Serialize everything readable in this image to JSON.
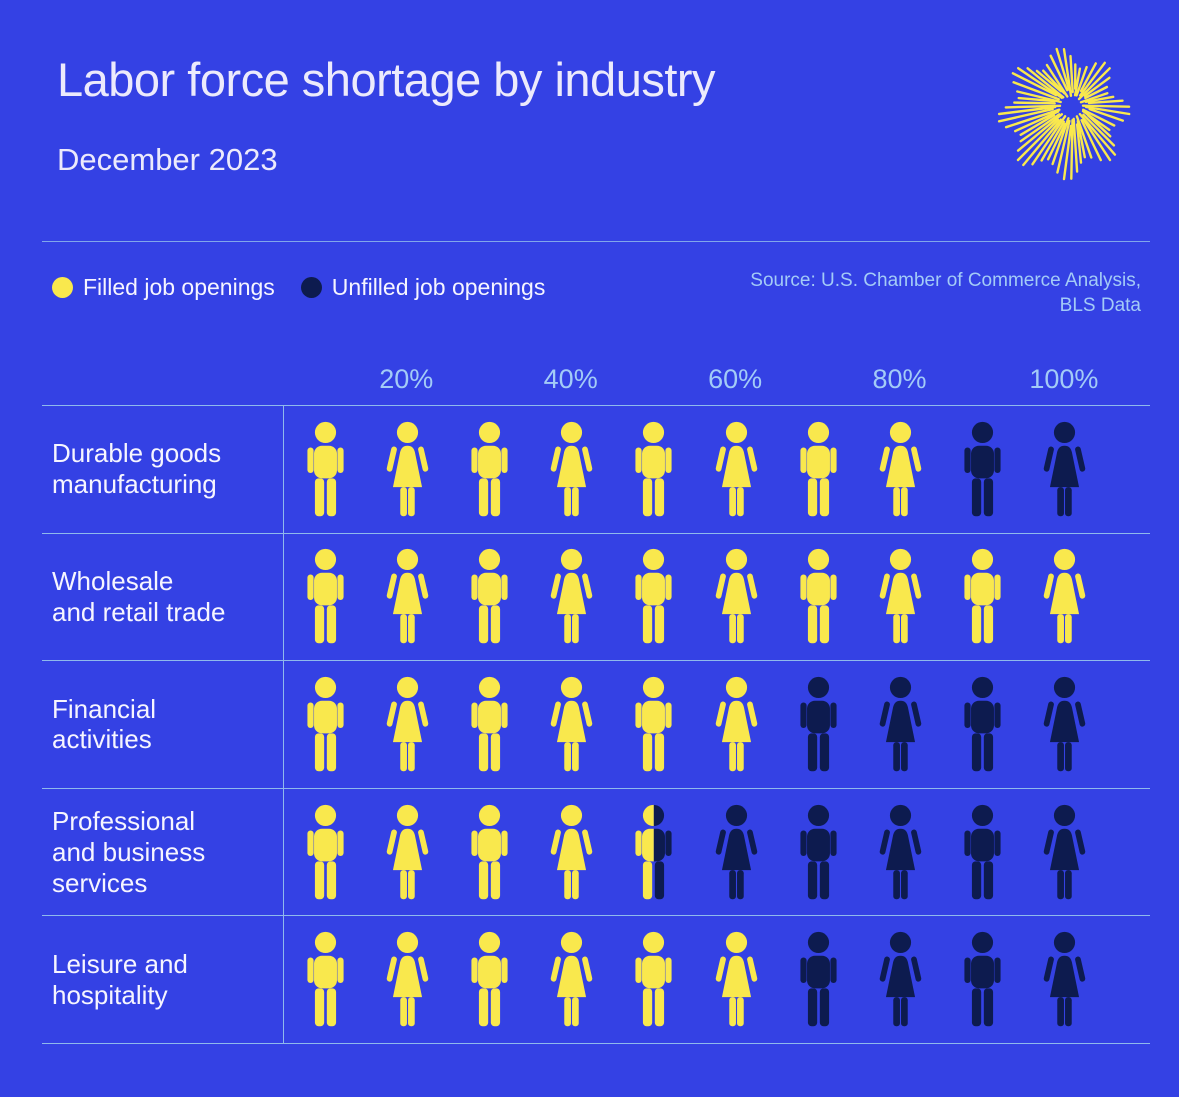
{
  "header": {
    "title": "Labor force shortage by industry",
    "subtitle": "December 2023"
  },
  "legend": {
    "items": [
      {
        "label": "Filled job openings",
        "color": "#F9E84D"
      },
      {
        "label": "Unfilled job openings",
        "color": "#0D1B4F"
      }
    ]
  },
  "source": {
    "text": "Source: U.S. Chamber of Commerce Analysis,\nBLS Data"
  },
  "chart_data": {
    "type": "pictogram",
    "title": "Labor force shortage by industry",
    "subtitle": "December 2023",
    "x_ticks": [
      "20%",
      "40%",
      "60%",
      "80%",
      "100%"
    ],
    "x_range_percent": [
      0,
      100
    ],
    "icons_per_row": 10,
    "icon_unit_percent": 10,
    "icon_pattern": "alternating male/female silhouettes",
    "legend_position": "top-left",
    "categories": [
      "Durable goods\nmanufacturing",
      "Wholesale\nand retail trade",
      "Financial\nactivities",
      "Professional\nand business\nservices",
      "Leisure and\nhospitality"
    ],
    "series": [
      {
        "name": "Filled job openings",
        "color": "#F9E84D",
        "values_percent": [
          80,
          100,
          60,
          45,
          60
        ]
      },
      {
        "name": "Unfilled job openings",
        "color": "#0D1B4F",
        "values_percent": [
          20,
          0,
          40,
          55,
          40
        ]
      }
    ]
  },
  "colors": {
    "background": "#3441E4",
    "filled": "#F9E84D",
    "unfilled": "#0D1B4F",
    "axis_text": "#A3CBF7",
    "grid_line": "#8FB9EC"
  }
}
